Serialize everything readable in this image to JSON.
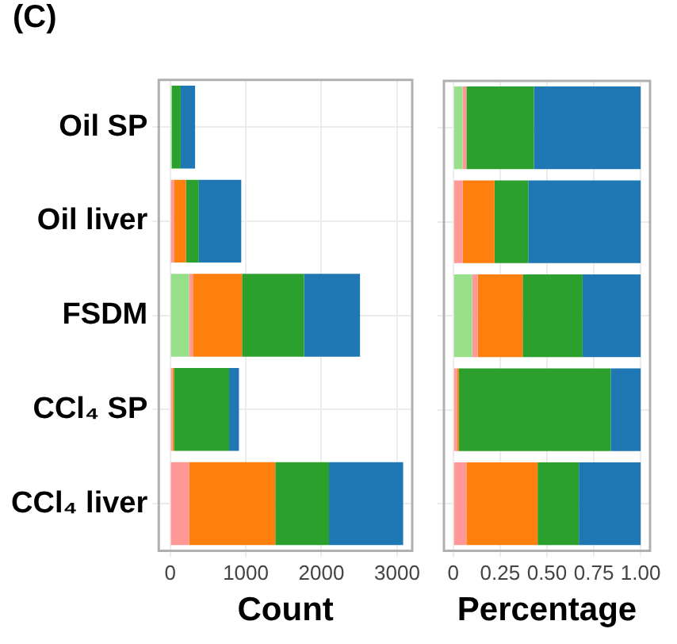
{
  "chart_data": [
    {
      "type": "bar",
      "orientation": "horizontal",
      "stacked": true,
      "annotations": [
        "(C)"
      ],
      "xlabel": "Count",
      "categories": [
        "Oil SP",
        "Oil liver",
        "FSDM",
        "CCl₄ SP",
        "CCl₄ liver"
      ],
      "series": [
        {
          "color": "#98df8a",
          "values": [
            20,
            0,
            250,
            0,
            0
          ]
        },
        {
          "color": "#ff9896",
          "values": [
            0,
            50,
            50,
            30,
            250
          ]
        },
        {
          "color": "#ff7f0e",
          "values": [
            0,
            160,
            650,
            20,
            1140
          ]
        },
        {
          "color": "#2ca02c",
          "values": [
            120,
            170,
            820,
            730,
            710
          ]
        },
        {
          "color": "#1f77b4",
          "values": [
            190,
            560,
            740,
            130,
            980
          ]
        }
      ],
      "xlim": [
        -150,
        3200
      ],
      "xticks": [
        0,
        1000,
        2000,
        3000
      ],
      "grid": true
    },
    {
      "type": "bar",
      "orientation": "horizontal",
      "stacked": true,
      "xlabel": "Percentage",
      "categories": [
        null,
        null,
        null,
        null,
        null
      ],
      "series": [
        {
          "color": "#98df8a",
          "values": [
            0.05,
            0,
            0.1,
            0,
            0
          ]
        },
        {
          "color": "#ff9896",
          "values": [
            0.02,
            0.05,
            0.03,
            0.02,
            0.07
          ]
        },
        {
          "color": "#ff7f0e",
          "values": [
            0,
            0.17,
            0.24,
            0.01,
            0.38
          ]
        },
        {
          "color": "#2ca02c",
          "values": [
            0.36,
            0.18,
            0.32,
            0.81,
            0.22
          ]
        },
        {
          "color": "#1f77b4",
          "values": [
            0.57,
            0.6,
            0.31,
            0.16,
            0.33
          ]
        }
      ],
      "xlim": [
        -0.05,
        1.05
      ],
      "xticks": [
        {
          "value": 0,
          "label": "0"
        },
        {
          "value": 0.25,
          "label": "0.25"
        },
        {
          "value": 0.5,
          "label": "0.50"
        },
        {
          "value": 0.75,
          "label": "0.75"
        },
        {
          "value": 1,
          "label": "1.00"
        }
      ],
      "grid": true,
      "tick_labels": "x"
    }
  ]
}
